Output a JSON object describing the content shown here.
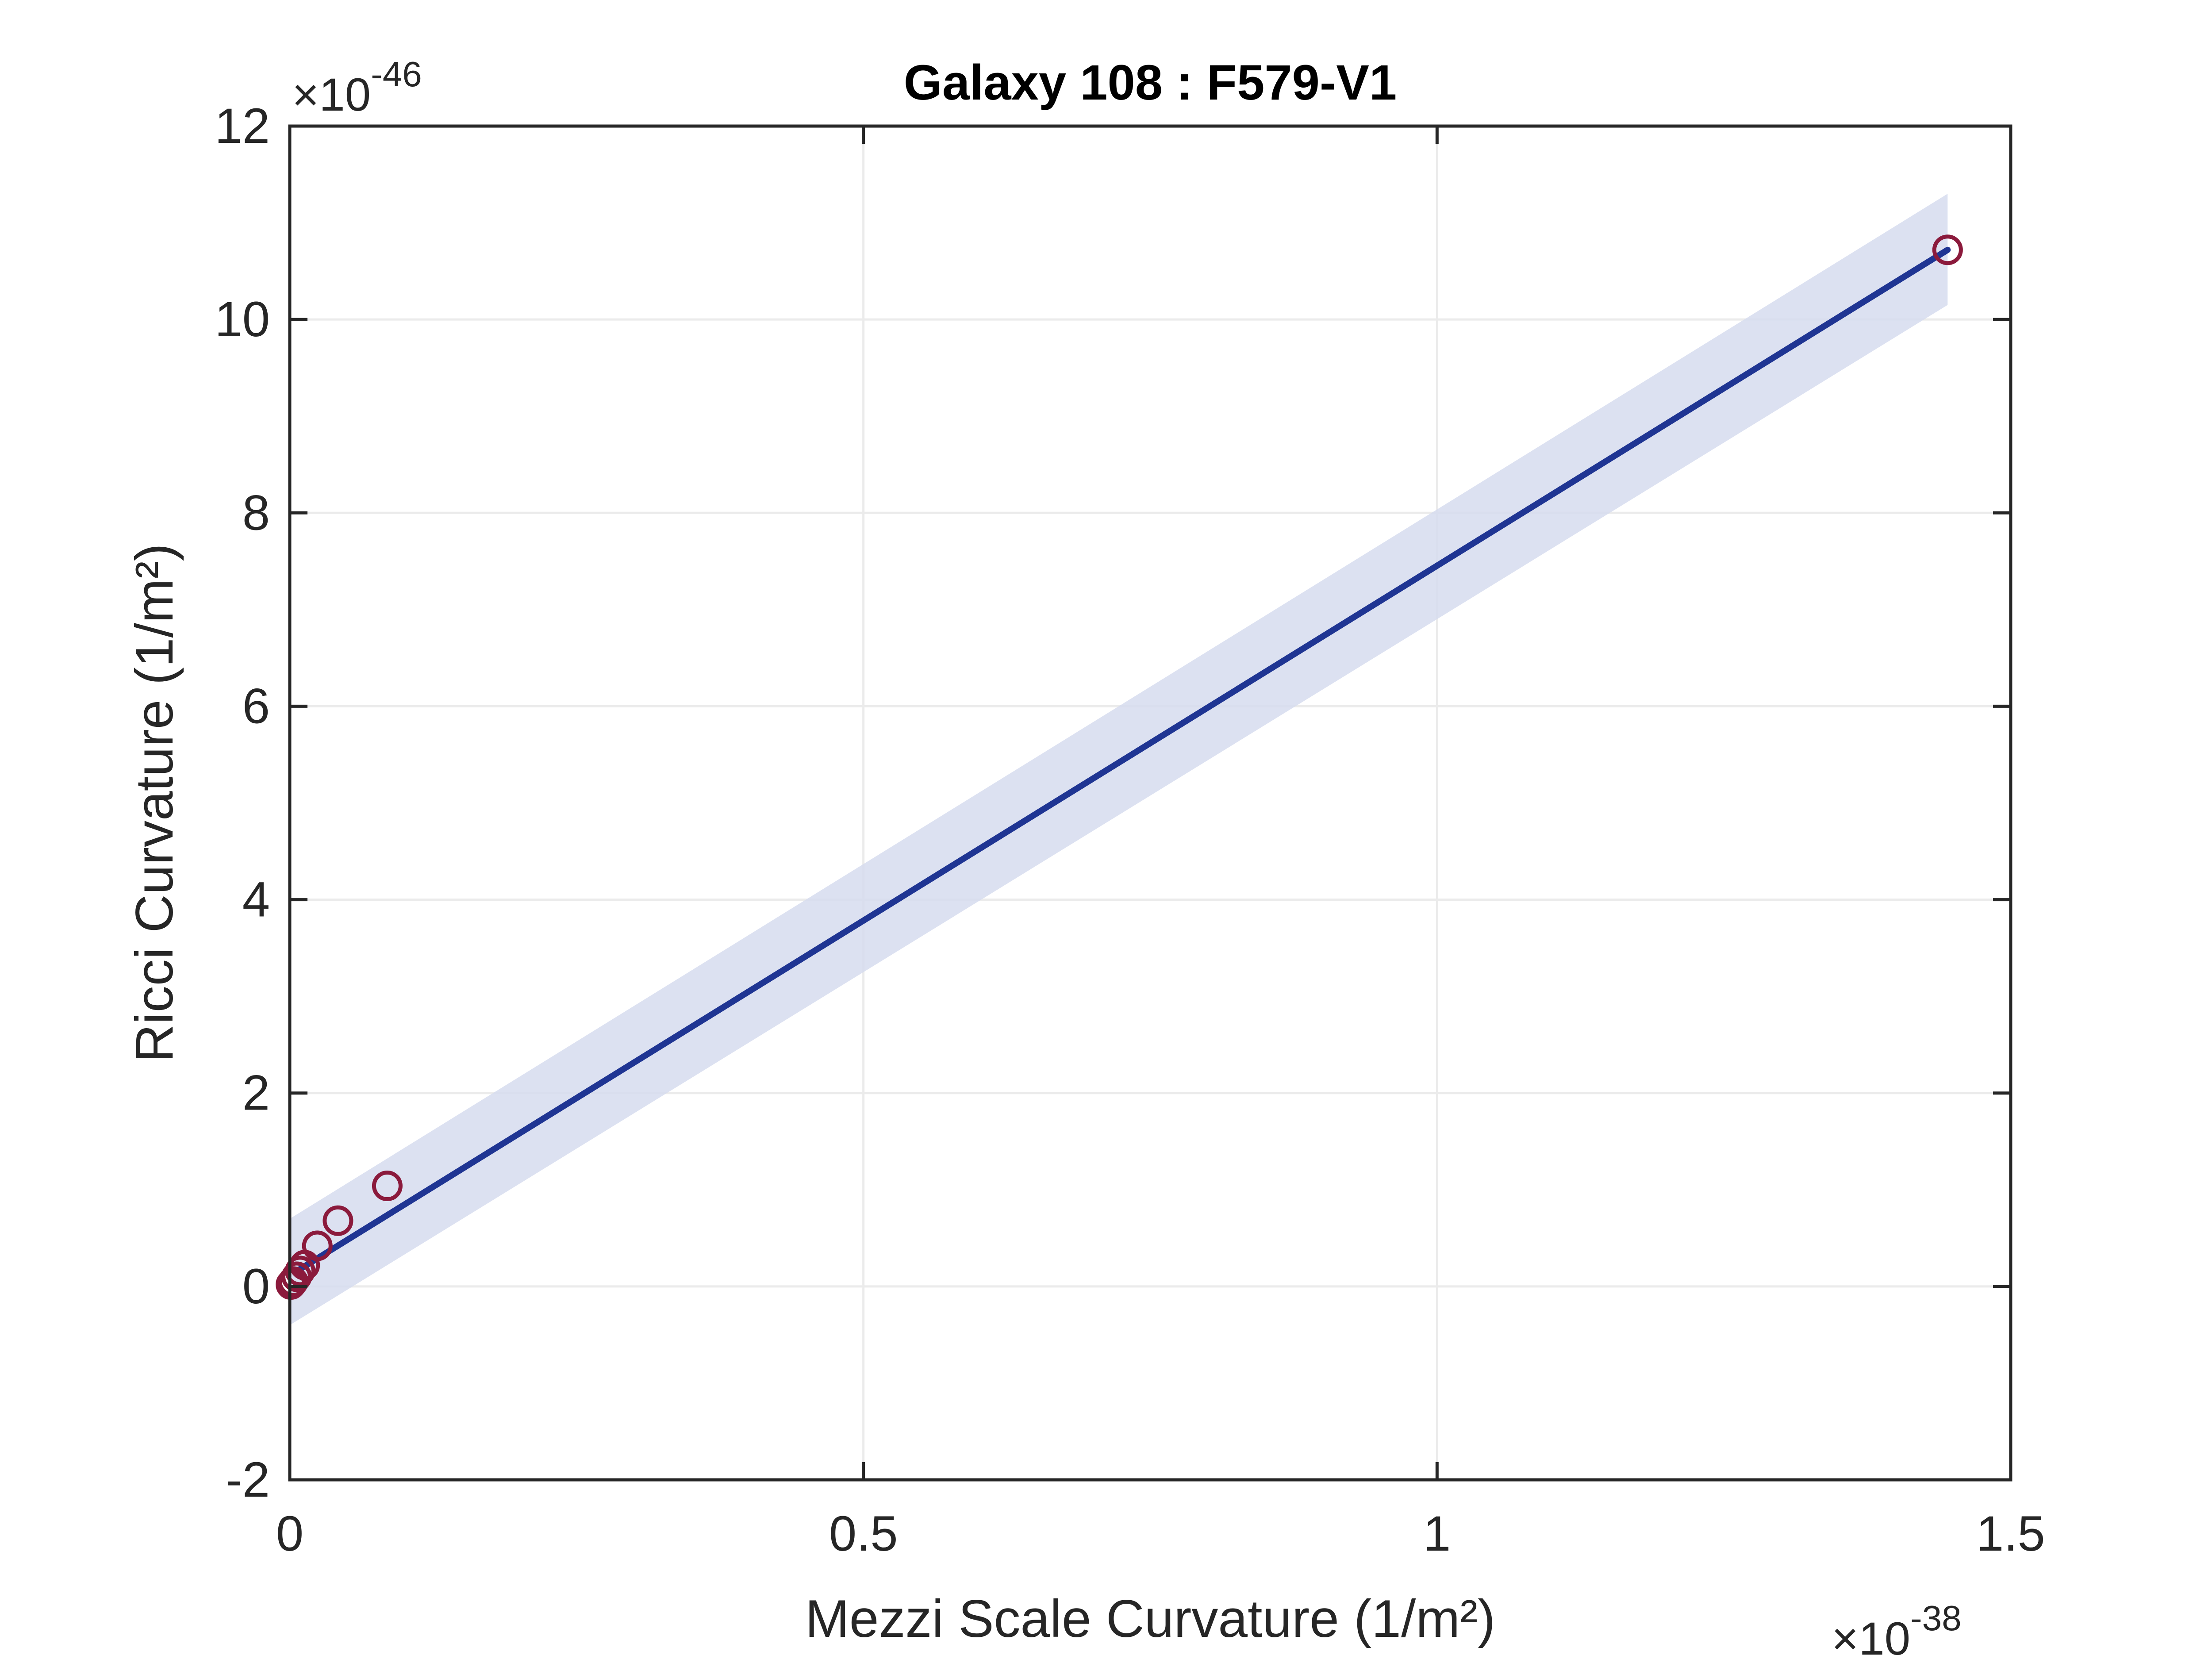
{
  "chart_data": {
    "type": "scatter",
    "title": "Galaxy 108 : F579-V1",
    "xlabel": "Mezzi Scale Curvature (1/m²)",
    "ylabel": "Ricci Curvature (1/m²)",
    "x_multiplier": {
      "base": "×10",
      "exponent": "-38"
    },
    "y_multiplier": {
      "base": "×10",
      "exponent": "-46"
    },
    "xlim": [
      0,
      1.5
    ],
    "ylim": [
      -2,
      12
    ],
    "xticks": [
      0,
      0.5,
      1,
      1.5
    ],
    "xtick_labels": [
      "0",
      "0.5",
      "1",
      "1.5"
    ],
    "yticks": [
      -2,
      0,
      2,
      4,
      6,
      8,
      10,
      12
    ],
    "ytick_labels": [
      "-2",
      "0",
      "2",
      "4",
      "6",
      "8",
      "10",
      "12"
    ],
    "grid": true,
    "series": [
      {
        "kind": "scatter",
        "marker": "open-circle",
        "color": "#8b1a3c",
        "x": [
          0.001,
          0.003,
          0.006,
          0.009,
          0.013,
          0.024,
          0.042,
          0.085,
          1.445
        ],
        "y": [
          0.02,
          0.05,
          0.1,
          0.16,
          0.22,
          0.42,
          0.68,
          1.04,
          10.72
        ]
      },
      {
        "kind": "fit-line",
        "color": "#1f3593",
        "x": [
          0.005,
          1.445
        ],
        "y": [
          0.15,
          10.72
        ]
      },
      {
        "kind": "confidence-band",
        "color": "#d6dcef",
        "x": [
          0.0,
          1.445
        ],
        "lower": [
          -0.4,
          10.15
        ],
        "upper": [
          0.7,
          11.3
        ]
      }
    ]
  }
}
